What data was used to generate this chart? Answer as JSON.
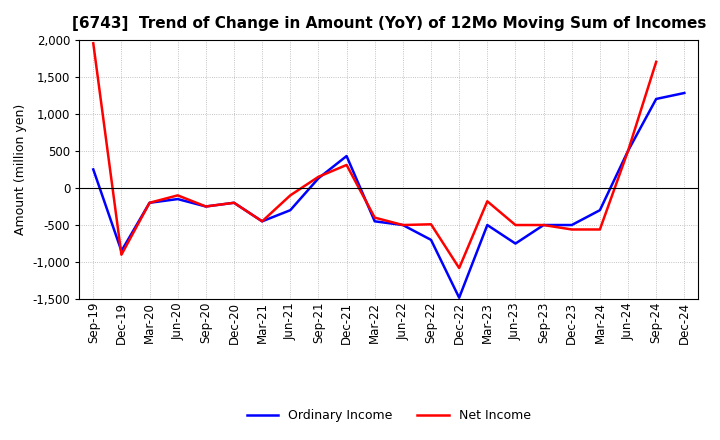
{
  "title": "[6743]  Trend of Change in Amount (YoY) of 12Mo Moving Sum of Incomes",
  "ylabel": "Amount (million yen)",
  "x_labels": [
    "Sep-19",
    "Dec-19",
    "Mar-20",
    "Jun-20",
    "Sep-20",
    "Dec-20",
    "Mar-21",
    "Jun-21",
    "Sep-21",
    "Dec-21",
    "Mar-22",
    "Jun-22",
    "Sep-22",
    "Dec-22",
    "Mar-23",
    "Jun-23",
    "Sep-23",
    "Dec-23",
    "Mar-24",
    "Jun-24",
    "Sep-24",
    "Dec-24"
  ],
  "ordinary_income": [
    250,
    -850,
    -200,
    -150,
    -250,
    -200,
    -450,
    -300,
    130,
    430,
    -450,
    -500,
    -700,
    -1480,
    -500,
    -750,
    -500,
    -500,
    -300,
    500,
    1200,
    1280
  ],
  "net_income": [
    1950,
    -900,
    -200,
    -100,
    -250,
    -200,
    -450,
    -100,
    150,
    310,
    -400,
    -500,
    -490,
    -1080,
    -180,
    -500,
    -500,
    -560,
    -560,
    500,
    1700,
    null
  ],
  "ordinary_color": "#0000ff",
  "net_color": "#ff0000",
  "background_color": "#ffffff",
  "grid_color": "#b0b0b0",
  "ylim": [
    -1500,
    2000
  ],
  "yticks": [
    -1500,
    -1000,
    -500,
    0,
    500,
    1000,
    1500,
    2000
  ],
  "legend_labels": [
    "Ordinary Income",
    "Net Income"
  ],
  "title_fontsize": 11,
  "axis_fontsize": 9,
  "tick_fontsize": 8.5
}
